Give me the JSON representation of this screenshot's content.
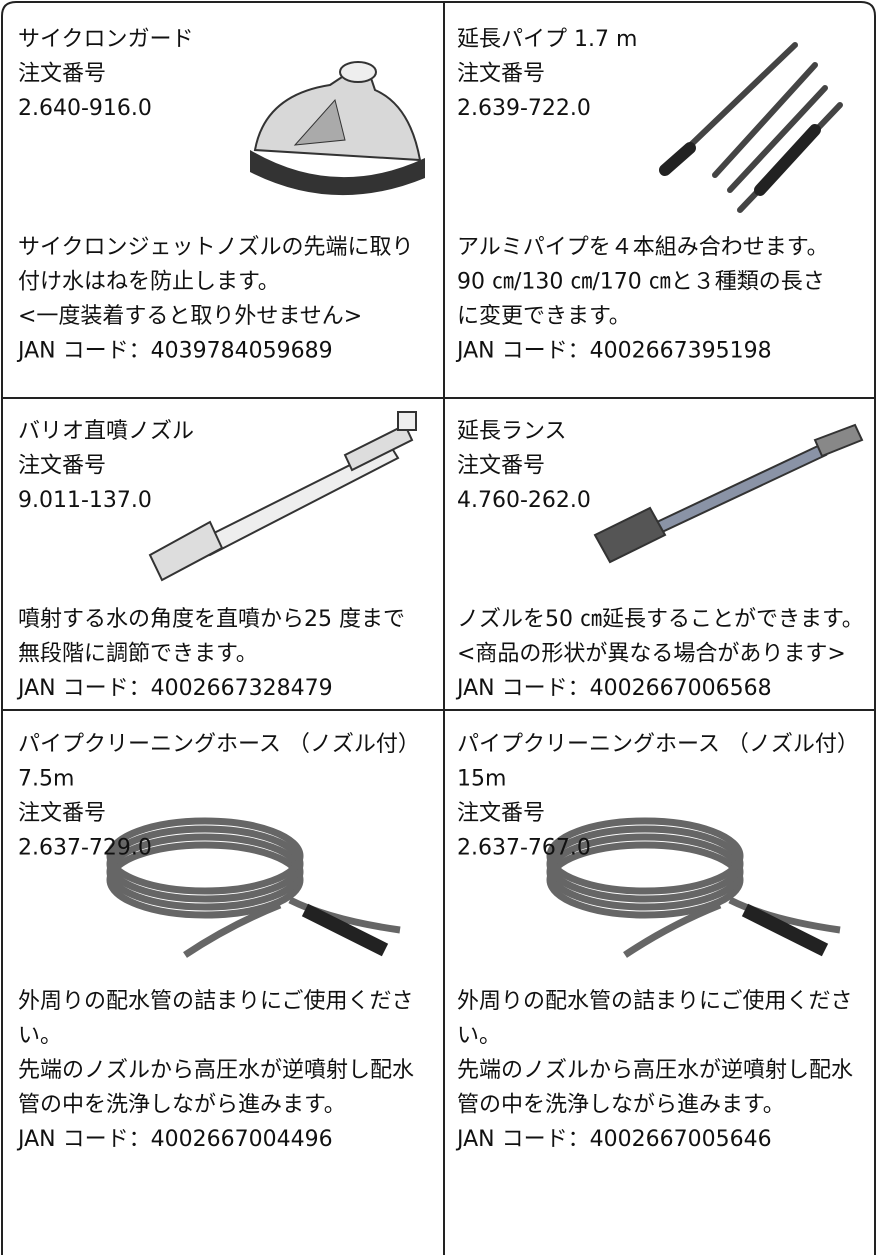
{
  "items": [
    {
      "header": [
        "サイクロンガード",
        "注文番号",
        "2.640-916.0"
      ],
      "description": [
        "サイクロンジェットノズルの先端に取り",
        "付け水はねを防止します。",
        "<一度装着すると取り外せません>",
        "JAN コード：4039784059689"
      ]
    },
    {
      "header": [
        "延長パイプ 1.7 m",
        "注文番号",
        "2.639-722.0"
      ],
      "description": [
        "アルミパイプを４本組み合わせます。",
        "90 ㎝/130 ㎝/170 ㎝と３種類の長さ",
        "に変更できます。",
        "JAN コード：4002667395198"
      ]
    },
    {
      "header": [
        "バリオ直噴ノズル",
        "注文番号",
        "9.011-137.0"
      ],
      "description": [
        "噴射する水の角度を直噴から25 度まで",
        "無段階に調節できます。",
        "JAN コード：4002667328479"
      ]
    },
    {
      "header": [
        "延長ランス",
        "注文番号",
        "4.760-262.0"
      ],
      "description": [
        "ノズルを50 ㎝延長することができます。",
        "<商品の形状が異なる場合があります>",
        "JAN コード：4002667006568"
      ]
    },
    {
      "header": [
        "パイプクリーニングホース （ノズル付）",
        "7.5m",
        "注文番号",
        "2.637-729.0"
      ],
      "description": [
        "外周りの配水管の詰まりにご使用くださ",
        "い。",
        "先端のノズルから高圧水が逆噴射し配水",
        "管の中を洗浄しながら進みます。",
        "JAN コード：4002667004496"
      ]
    },
    {
      "header": [
        "パイプクリーニングホース （ノズル付）",
        "15m",
        "注文番号",
        "2.637-767.0"
      ],
      "description": [
        "外周りの配水管の詰まりにご使用くださ",
        "い。",
        "先端のノズルから高圧水が逆噴射し配水",
        "管の中を洗浄しながら進みます。",
        "JAN コード：4002667005646"
      ]
    }
  ]
}
